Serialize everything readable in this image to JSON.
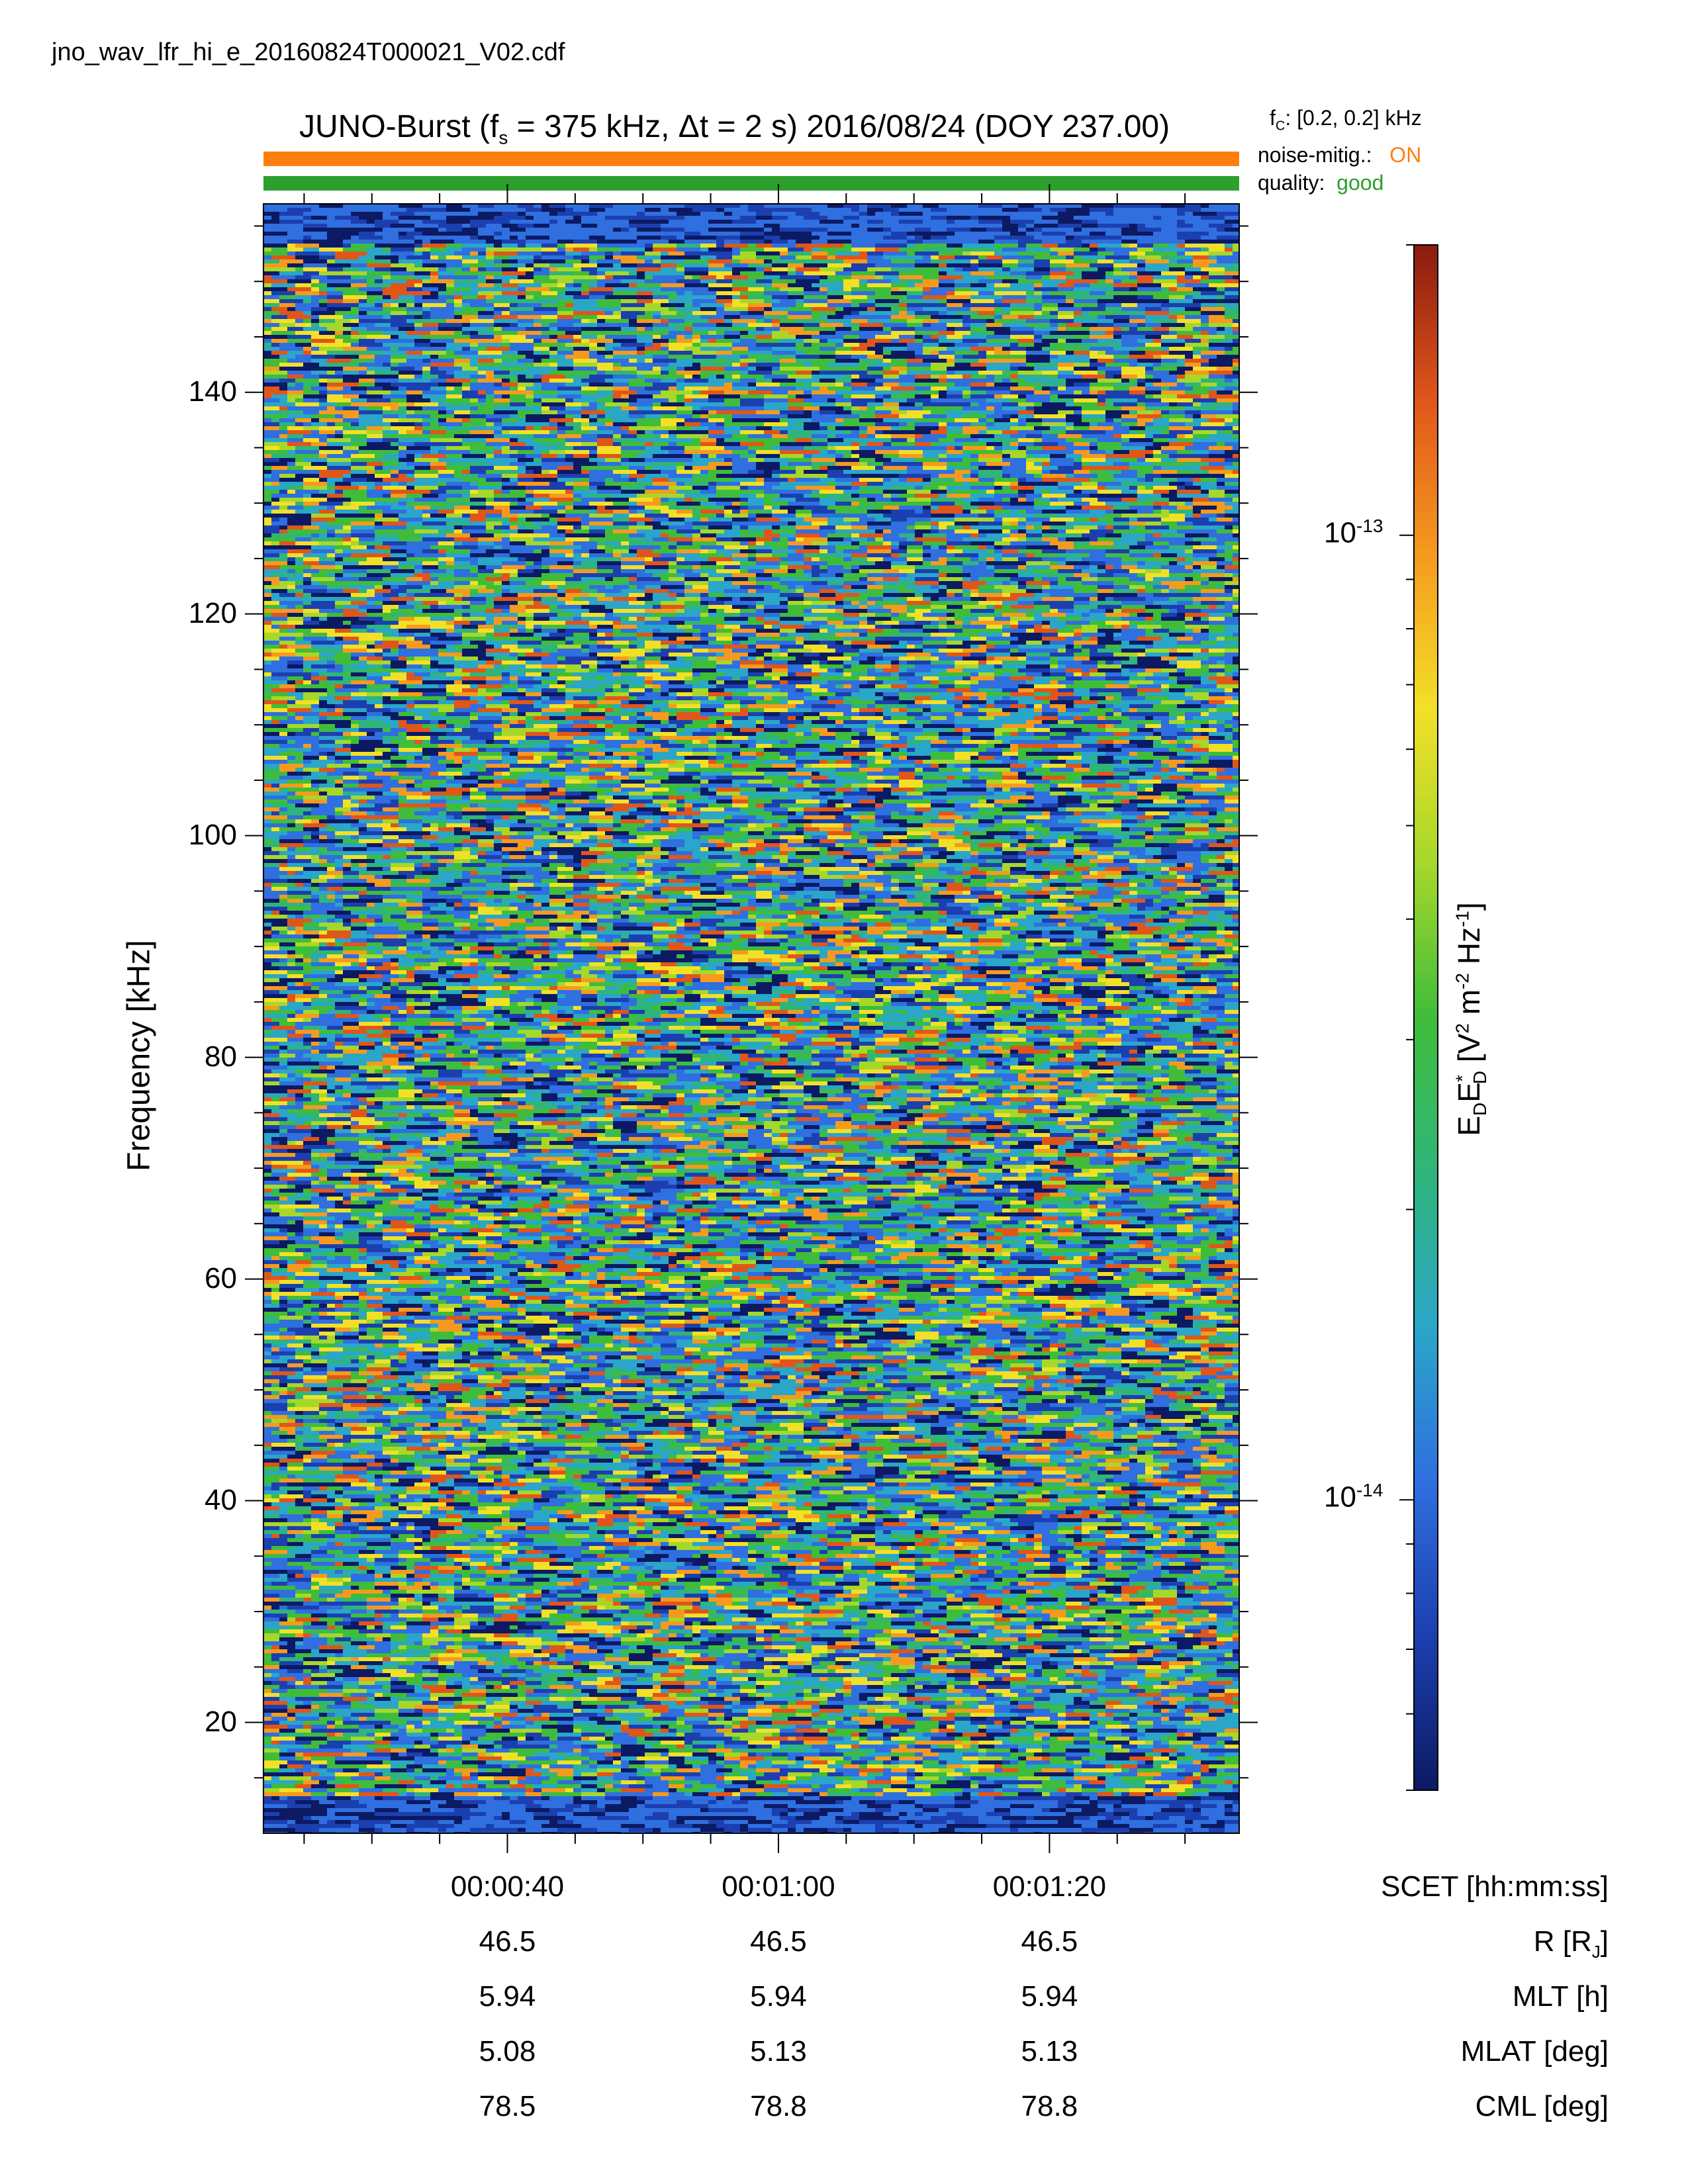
{
  "filename": "jno_wav_lfr_hi_e_20160824T000021_V02.cdf",
  "title": {
    "instrument": "JUNO-Burst (f",
    "fs_sub": "s",
    "rest": " = 375 kHz, Δt = 2 s)  2016/08/24 (DOY 237.00)"
  },
  "fc": {
    "prefix": "f",
    "sub": "C",
    "value": ": [0.2, 0.2] kHz"
  },
  "flags": [
    {
      "name": "noise-mitig.:",
      "value": "ON",
      "color": "#ff7f0e"
    },
    {
      "name": "quality:",
      "value": "good",
      "color": "#2ca02c"
    }
  ],
  "ylabel": "Frequency [kHz]",
  "colorbar": {
    "label_html_parts": [
      "E",
      "D",
      "E",
      "*",
      "D",
      " [V",
      "2",
      " m",
      "-2",
      " Hz",
      "-1",
      "]"
    ],
    "ticks": [
      {
        "base": "10",
        "exp": "-13"
      },
      {
        "base": "10",
        "exp": "-14"
      }
    ],
    "colormap": [
      "#0b1a63",
      "#1c3fb0",
      "#2f6fe0",
      "#2aa6c8",
      "#2fb57a",
      "#3fbd3a",
      "#a6d82a",
      "#f2e027",
      "#f59a1e",
      "#e0561a",
      "#8b1a10"
    ]
  },
  "ephemeris": {
    "rows": [
      {
        "name": "SCET [hh:mm:ss]",
        "values": [
          "00:00:40",
          "00:01:00",
          "00:01:20"
        ]
      },
      {
        "name": "R [R",
        "sub": "J",
        "suffix": "]",
        "values": [
          "46.5",
          "46.5",
          "46.5"
        ]
      },
      {
        "name": "MLT [h]",
        "values": [
          "5.94",
          "5.94",
          "5.94"
        ]
      },
      {
        "name": "MLAT [deg]",
        "values": [
          "5.08",
          "5.13",
          "5.13"
        ]
      },
      {
        "name": "CML [deg]",
        "values": [
          "78.5",
          "78.8",
          "78.8"
        ]
      }
    ]
  },
  "chart_data": {
    "type": "heatmap",
    "title": "JUNO-Burst (fs = 375 kHz, Δt = 2 s)  2016/08/24 (DOY 237.00)",
    "xlabel": "SCET [hh:mm:ss]",
    "ylabel": "Frequency [kHz]",
    "zlabel": "EDE*D [V2 m-2 Hz-1]",
    "x_tick_labels": [
      "00:00:40",
      "00:01:00",
      "00:01:20"
    ],
    "x_tick_values_s": [
      40,
      60,
      80
    ],
    "xlim_s": [
      22,
      94
    ],
    "ylim": [
      10,
      157
    ],
    "y_ticks": [
      20,
      40,
      60,
      80,
      100,
      120,
      140
    ],
    "z_scale": "log",
    "zlim": [
      5e-15,
      2e-13
    ],
    "z_tick_values": [
      1e-14,
      1e-13
    ],
    "grid": false,
    "description": "broadband noise, ~2e-14 to 1e-13 across the band; weaker at the band edges below ~14 kHz and above ~153 kHz"
  }
}
